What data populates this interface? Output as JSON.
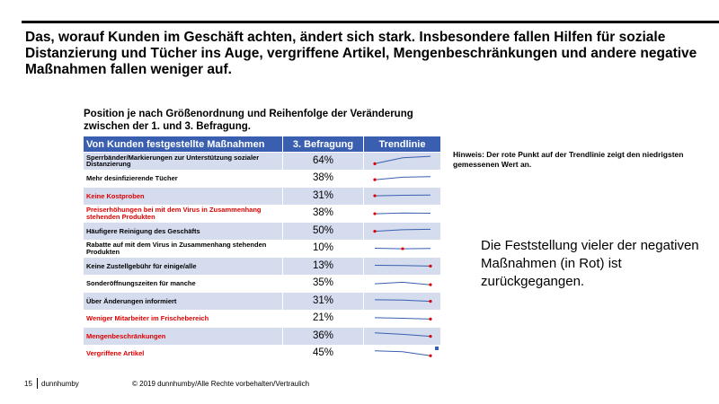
{
  "headline": "Das, worauf Kunden im Geschäft achten, ändert sich stark. Insbesondere fallen Hilfen für soziale Distanzierung und Tücher ins Auge, vergriffene Artikel, Mengenbeschränkungen und andere negative Maßnahmen fallen weniger auf.",
  "subtitle": "Position je nach Größenordnung und Reihenfolge der Veränderung zwischen der 1. und 3. Befragung.",
  "table": {
    "headers": [
      "Von Kunden festgestellte Maßnahmen",
      "3. Befragung",
      "Trendlinie"
    ],
    "rows": [
      {
        "label": "Sperrbänder/Markierungen zur Unterstützung sozialer Distanzierung",
        "value": "64%",
        "negative": false,
        "trend": [
          0.15,
          0.75,
          0.9
        ],
        "min_index": 0
      },
      {
        "label": "Mehr desinfizierende Tücher",
        "value": "38%",
        "negative": false,
        "trend": [
          0.35,
          0.6,
          0.65
        ],
        "min_index": 0
      },
      {
        "label": "Keine Kostproben",
        "value": "31%",
        "negative": true,
        "trend": [
          0.45,
          0.5,
          0.52
        ],
        "min_index": 0
      },
      {
        "label": "Preiserhöhungen bei mit dem Virus in Zusammenhang stehenden Produkten",
        "value": "38%",
        "negative": true,
        "trend": [
          0.45,
          0.52,
          0.5
        ],
        "min_index": 0
      },
      {
        "label": "Häufigere Reinigung des Geschäfts",
        "value": "50%",
        "negative": false,
        "trend": [
          0.4,
          0.55,
          0.6
        ],
        "min_index": 0
      },
      {
        "label": "Rabatte auf mit dem Virus in Zusammenhang stehenden Produkten",
        "value": "10%",
        "negative": false,
        "trend": [
          0.5,
          0.45,
          0.48
        ],
        "min_index": 1
      },
      {
        "label": "Keine Zustellgebühr für einige/alle",
        "value": "13%",
        "negative": false,
        "trend": [
          0.5,
          0.48,
          0.42
        ],
        "min_index": 2
      },
      {
        "label": "Sonderöffnungszeiten für manche",
        "value": "35%",
        "negative": false,
        "trend": [
          0.45,
          0.6,
          0.35
        ],
        "min_index": 2
      },
      {
        "label": "Über Änderungen informiert",
        "value": "31%",
        "negative": false,
        "trend": [
          0.55,
          0.52,
          0.4
        ],
        "min_index": 2
      },
      {
        "label": "Weniger Mitarbeiter im Frischebereich",
        "value": "21%",
        "negative": true,
        "trend": [
          0.55,
          0.5,
          0.42
        ],
        "min_index": 2
      },
      {
        "label": "Mengenbeschränkungen",
        "value": "36%",
        "negative": true,
        "trend": [
          0.75,
          0.6,
          0.4
        ],
        "min_index": 2
      },
      {
        "label": "Vergriffene Artikel",
        "value": "45%",
        "negative": true,
        "trend": [
          0.75,
          0.65,
          0.25
        ],
        "min_index": 2
      }
    ]
  },
  "note": "Hinweis: Der rote Punkt auf der Trendlinie zeigt den niedrigsten gemessenen Wert an.",
  "finding": "Die Feststellung vieler der negativen Maßnahmen (in Rot) ist zurückgegangen.",
  "footer": {
    "page_number": "15",
    "brand": "dunnhumby",
    "copyright": "© 2019 dunnhumby/Alle Rechte vorbehalten/Vertraulich"
  },
  "colors": {
    "header_bg": "#3a5fb0",
    "stripe": "#d4dcee",
    "negative_text": "#e00000",
    "trend_line": "#3a5fb0",
    "min_marker": "#e00000"
  }
}
